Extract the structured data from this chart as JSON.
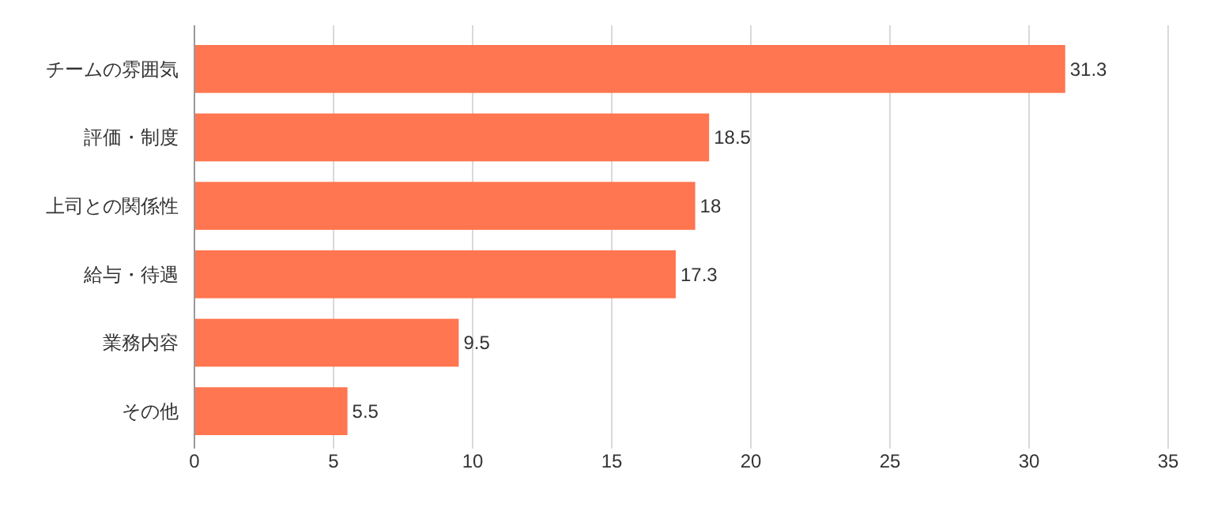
{
  "chart_data": {
    "type": "bar",
    "orientation": "horizontal",
    "categories": [
      "チームの雰囲気",
      "評価・制度",
      "上司との関係性",
      "給与・待遇",
      "業務内容",
      "その他"
    ],
    "values": [
      31.3,
      18.5,
      18,
      17.3,
      9.5,
      5.5
    ],
    "color": "#ff7650",
    "xlim": [
      0,
      35
    ],
    "xticks": [
      0,
      5,
      10,
      15,
      20,
      25,
      30,
      35
    ],
    "grid": "x",
    "data_labels": true
  }
}
